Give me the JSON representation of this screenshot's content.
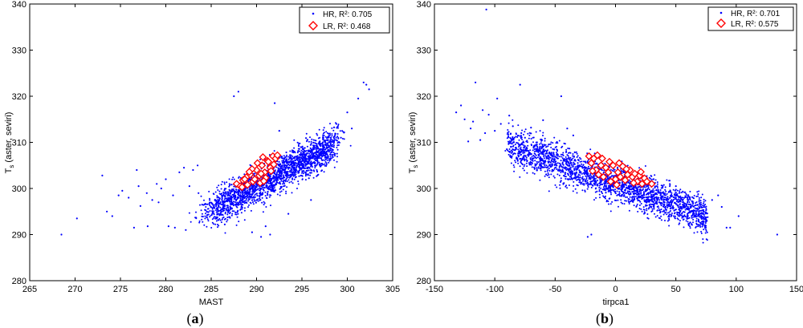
{
  "chart_data": [
    {
      "type": "scatter",
      "panel_label": "(a)",
      "panel_label_bold": "a",
      "xlabel": "MAST",
      "ylabel_main": "T",
      "ylabel_sub": "s",
      "ylabel_rest": " (aster, seviri)",
      "xlim": [
        265,
        305
      ],
      "ylim": [
        280,
        340
      ],
      "xticks": [
        "265",
        "270",
        "275",
        "280",
        "285",
        "290",
        "295",
        "300",
        "305"
      ],
      "yticks": [
        "280",
        "290",
        "300",
        "310",
        "320",
        "330",
        "340"
      ],
      "grid": false,
      "legend_position": "top-right",
      "series": [
        {
          "name": "HR, R²: 0.705",
          "marker": "point",
          "color": "#0000ff",
          "cloud": {
            "x_min": 284.8,
            "x_max": 298.5,
            "y_at_x_min": 295.2,
            "y_at_x_max": 309.5,
            "spread": 3.6,
            "count": 2200
          },
          "x": [
            268.5,
            270.2,
            273.0,
            273.5,
            274.1,
            274.8,
            275.2,
            275.9,
            276.5,
            277.0,
            277.2,
            277.9,
            278.5,
            279.0,
            279.5,
            280.0,
            280.8,
            281.5,
            282.0,
            282.6,
            283.0,
            283.5,
            284.0,
            278.0,
            279.2,
            281.0,
            282.2,
            283.6,
            276.8,
            280.3,
            296.0,
            296.8,
            297.5,
            298.0,
            298.8,
            299.3,
            300.0,
            300.5,
            301.2,
            301.8,
            302.1,
            302.4,
            290.5,
            291.5,
            292.0,
            287.5,
            288.0,
            289.5,
            291.0,
            293.5,
            286.5,
            292.5
          ],
          "y": [
            290.0,
            293.5,
            302.8,
            295.0,
            294.0,
            298.5,
            299.5,
            298.0,
            291.5,
            300.5,
            296.2,
            299.0,
            297.5,
            301.0,
            300.0,
            302.0,
            298.5,
            303.5,
            304.5,
            300.5,
            304.0,
            305.0,
            296.5,
            291.8,
            297.0,
            291.5,
            291.0,
            299.0,
            304.0,
            291.8,
            297.5,
            303.0,
            308.0,
            310.0,
            314.0,
            311.0,
            316.5,
            313.0,
            319.5,
            323.0,
            322.5,
            321.5,
            289.5,
            290.0,
            318.5,
            320.0,
            321.0,
            290.5,
            291.8,
            294.5,
            292.2,
            312.5
          ]
        },
        {
          "name": "LR, R²: 0.468",
          "marker": "diamond",
          "color": "#ff0000",
          "x": [
            287.8,
            288.2,
            288.5,
            288.9,
            289.3,
            289.6,
            290.0,
            290.3,
            290.6,
            290.9,
            291.2,
            291.5,
            291.8,
            292.1,
            289.0,
            289.8,
            290.4,
            291.0,
            291.6,
            290.1,
            289.5,
            290.8,
            291.3,
            288.7,
            290.5,
            291.9,
            289.2,
            290.7,
            292.3,
            288.4
          ],
          "y": [
            301.0,
            300.5,
            301.8,
            302.5,
            303.0,
            301.5,
            304.0,
            302.8,
            305.0,
            303.5,
            306.0,
            304.5,
            307.0,
            306.5,
            300.8,
            302.0,
            301.2,
            302.3,
            303.8,
            305.5,
            304.2,
            301.6,
            305.8,
            302.0,
            303.2,
            305.2,
            303.6,
            306.8,
            307.2,
            300.3
          ]
        }
      ]
    },
    {
      "type": "scatter",
      "panel_label": "(b)",
      "panel_label_bold": "b",
      "xlabel": "tirpca1",
      "ylabel_main": "T",
      "ylabel_sub": "s",
      "ylabel_rest": " (aster, seviri)",
      "xlim": [
        -150,
        150
      ],
      "ylim": [
        280,
        340
      ],
      "xticks": [
        "-150",
        "-100",
        "-50",
        "0",
        "50",
        "100",
        "150"
      ],
      "yticks": [
        "280",
        "290",
        "300",
        "310",
        "320",
        "330",
        "340"
      ],
      "grid": false,
      "legend_position": "top-right",
      "series": [
        {
          "name": "HR, R²: 0.701",
          "marker": "point",
          "color": "#0000ff",
          "cloud": {
            "x_min": -90,
            "x_max": 76,
            "y_at_x_min": 309.5,
            "y_at_x_max": 294.0,
            "spread": 3.6,
            "count": 2400
          },
          "x": [
            -132,
            -128,
            -125,
            -120,
            -116,
            -112,
            -108,
            -105,
            -100,
            -95,
            -90,
            -85,
            -80,
            -75,
            -70,
            -65,
            -118,
            -122,
            -110,
            -98,
            -88,
            -79,
            -45,
            -40,
            -35,
            -60,
            80,
            85,
            88,
            92,
            95,
            102,
            134,
            -20,
            -23,
            40,
            50,
            60,
            -107,
            -78
          ],
          "y": [
            316.5,
            318.0,
            315.0,
            313.0,
            323.0,
            310.5,
            312.0,
            316.0,
            312.5,
            314.0,
            308.5,
            313.5,
            309.5,
            311.0,
            313.2,
            310.0,
            314.5,
            310.2,
            317.0,
            319.5,
            315.8,
            322.5,
            320.0,
            313.0,
            311.5,
            314.8,
            297.5,
            298.5,
            296.0,
            291.5,
            291.5,
            294.0,
            290.0,
            290.0,
            289.5,
            297.5,
            300.5,
            296.0,
            338.8,
            312.0
          ]
        },
        {
          "name": "LR, R²: 0.575",
          "marker": "diamond",
          "color": "#ff0000",
          "x": [
            -22,
            -20,
            -18,
            -16,
            -14,
            -12,
            -10,
            -8,
            -6,
            -4,
            -2,
            0,
            2,
            4,
            6,
            8,
            10,
            12,
            14,
            16,
            18,
            20,
            22,
            24,
            26,
            30,
            -19,
            -11,
            -5,
            3,
            9,
            15,
            21,
            -15,
            1
          ],
          "y": [
            307.0,
            305.5,
            306.5,
            304.0,
            303.0,
            305.0,
            302.5,
            304.5,
            303.5,
            301.5,
            305.0,
            302.0,
            303.5,
            302.5,
            304.8,
            301.8,
            303.0,
            304.0,
            302.5,
            303.2,
            301.5,
            302.8,
            301.0,
            302.2,
            301.5,
            301.0,
            303.8,
            306.5,
            305.8,
            305.5,
            304.2,
            301.2,
            303.6,
            307.2,
            300.8
          ]
        }
      ]
    }
  ]
}
